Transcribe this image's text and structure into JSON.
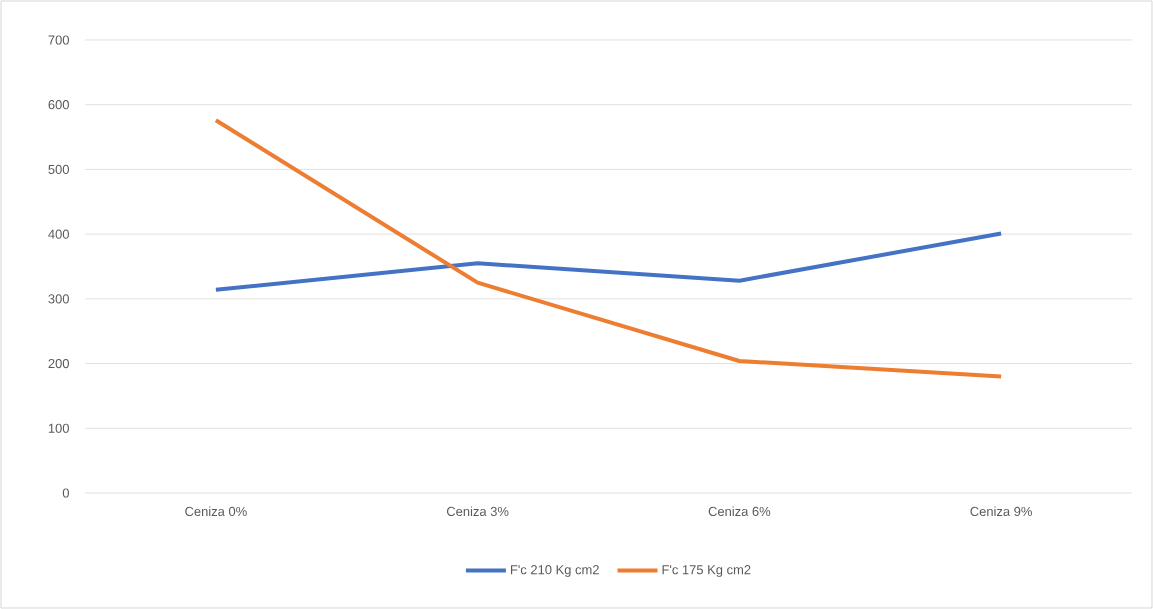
{
  "chart_data": {
    "type": "line",
    "categories": [
      "Ceniza 0%",
      "Ceniza 3%",
      "Ceniza 6%",
      "Ceniza 9%"
    ],
    "series": [
      {
        "name": "F'c 210 Kg cm2",
        "color": "#4472c4",
        "values": [
          314,
          355,
          328,
          401
        ]
      },
      {
        "name": "F'c 175 Kg cm2",
        "color": "#ed7d31",
        "values": [
          576,
          325,
          204,
          180
        ]
      }
    ],
    "ylim": [
      0,
      700
    ],
    "yticks": [
      0,
      100,
      200,
      300,
      400,
      500,
      600,
      700
    ],
    "grid": "y",
    "legend": "bottom"
  }
}
